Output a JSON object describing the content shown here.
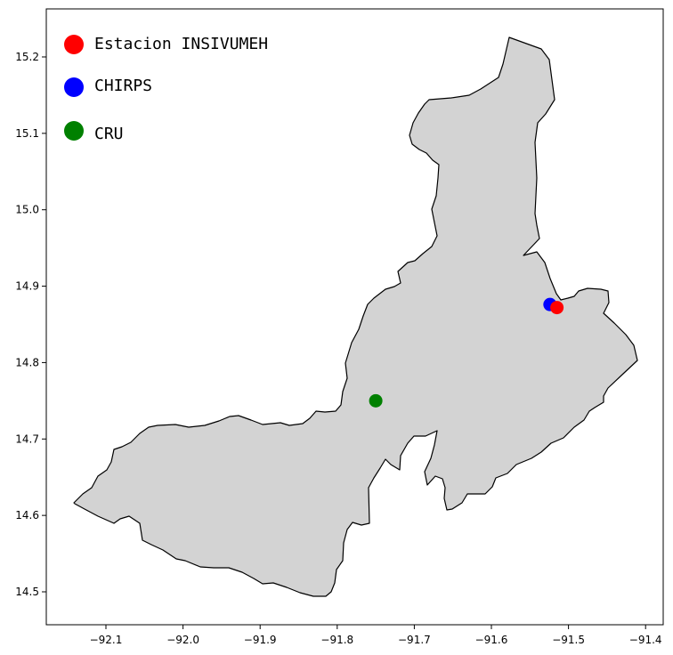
{
  "map": {
    "x_ticks": [
      "−92.1",
      "−92.0",
      "−91.9",
      "−91.8",
      "−91.7",
      "−91.6",
      "−91.5",
      "−91.4"
    ],
    "y_ticks": [
      "14.5",
      "14.6",
      "14.7",
      "14.8",
      "14.9",
      "15.0",
      "15.1",
      "15.2"
    ],
    "x_tick_values": [
      -92.1,
      -92.0,
      -91.9,
      -91.8,
      -91.7,
      -91.6,
      -91.5,
      -91.4
    ],
    "y_tick_values": [
      14.5,
      14.6,
      14.7,
      14.8,
      14.9,
      15.0,
      15.1,
      15.2
    ],
    "region_fill": "#d3d3d3",
    "region_stroke": "#000000",
    "legend": [
      {
        "label": "Estacion INSIVUMEH",
        "color": "#ff0000"
      },
      {
        "label": "CHIRPS",
        "color": "#0000ff"
      },
      {
        "label": "CRU",
        "color": "#008000"
      }
    ],
    "points": [
      {
        "lon": -91.524,
        "lat": 14.876,
        "color": "#0000ff"
      },
      {
        "lon": -91.515,
        "lat": 14.872,
        "color": "#ff0000"
      },
      {
        "lon": -91.75,
        "lat": 14.75,
        "color": "#008000"
      }
    ]
  }
}
